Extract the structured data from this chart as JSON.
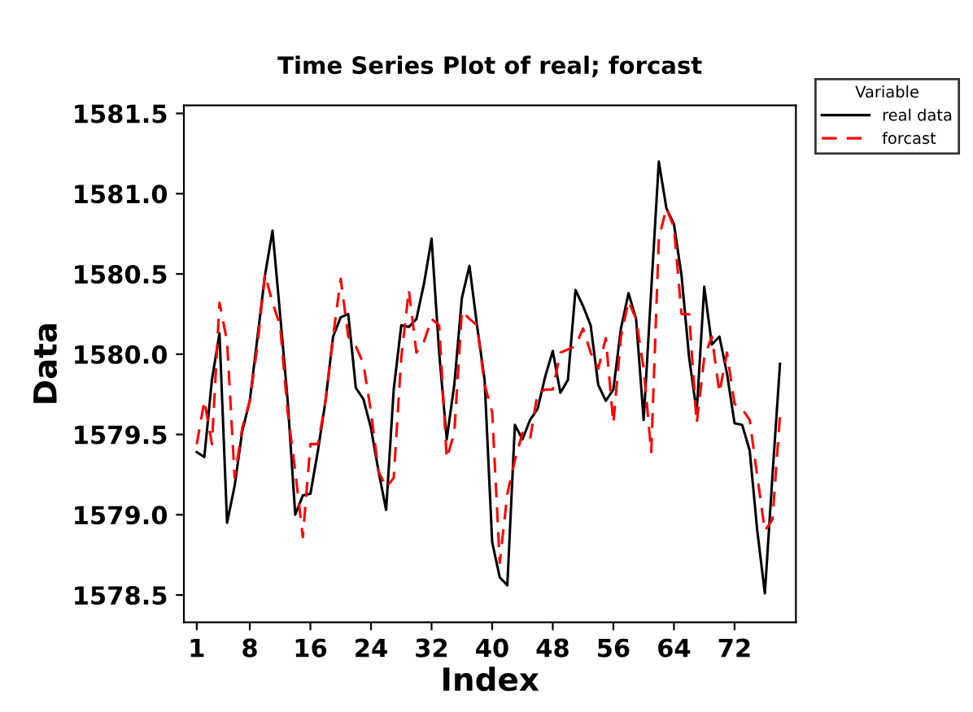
{
  "chart_data": {
    "type": "line",
    "title": "Time Series Plot of real; forcast",
    "xlabel": "Index",
    "ylabel": "Data",
    "legend_title": "Variable",
    "legend": "top right",
    "x": [
      1,
      2,
      3,
      4,
      5,
      6,
      7,
      8,
      9,
      10,
      11,
      12,
      13,
      14,
      15,
      16,
      17,
      18,
      19,
      20,
      21,
      22,
      23,
      24,
      25,
      26,
      27,
      28,
      29,
      30,
      31,
      32,
      33,
      34,
      35,
      36,
      37,
      38,
      39,
      40,
      41,
      42,
      43,
      44,
      45,
      46,
      47,
      48,
      49,
      50,
      51,
      52,
      53,
      54,
      55,
      56,
      57,
      58,
      59,
      60,
      61,
      62,
      63,
      64,
      65,
      66,
      67,
      68,
      69,
      70,
      71,
      72,
      73,
      74,
      75,
      76,
      77,
      78
    ],
    "xlim": [
      -0.7,
      80.1
    ],
    "xticks": [
      1,
      8,
      16,
      24,
      32,
      40,
      48,
      56,
      64,
      72
    ],
    "ylim": [
      1578.33,
      1581.55
    ],
    "yticks": [
      {
        "value": 1578.5,
        "label": "1578.5"
      },
      {
        "value": 1579,
        "label": "1579.0"
      },
      {
        "value": 1579.5,
        "label": "1579.5"
      },
      {
        "value": 1580,
        "label": "1580.0"
      },
      {
        "value": 1580.5,
        "label": "1580.5"
      },
      {
        "value": 1581,
        "label": "1581.0"
      },
      {
        "value": 1581.5,
        "label": "1581.5"
      }
    ],
    "grid": false,
    "marker": "none",
    "series": [
      {
        "name": "real data",
        "color": "#000000",
        "line_style": "solid",
        "values": [
          1579.39,
          1579.36,
          1579.84,
          1580.13,
          1578.95,
          1579.18,
          1579.52,
          1579.71,
          1580.1,
          1580.49,
          1580.77,
          1580.25,
          1579.71,
          1579.0,
          1579.12,
          1579.13,
          1579.4,
          1579.71,
          1580.11,
          1580.23,
          1580.25,
          1579.79,
          1579.72,
          1579.54,
          1579.27,
          1579.03,
          1579.78,
          1580.18,
          1580.17,
          1580.22,
          1580.44,
          1580.72,
          1580.01,
          1579.47,
          1579.81,
          1580.35,
          1580.55,
          1580.18,
          1579.84,
          1578.83,
          1578.61,
          1578.56,
          1579.56,
          1579.47,
          1579.59,
          1579.66,
          1579.86,
          1580.02,
          1579.76,
          1579.84,
          1580.4,
          1580.3,
          1580.18,
          1579.81,
          1579.71,
          1579.78,
          1580.16,
          1580.38,
          1580.22,
          1579.59,
          1580.4,
          1581.2,
          1580.91,
          1580.81,
          1580.49,
          1579.98,
          1579.64,
          1580.42,
          1580.06,
          1580.11,
          1579.88,
          1579.57,
          1579.56,
          1579.4,
          1578.9,
          1578.51,
          1579.24,
          1579.94
        ]
      },
      {
        "name": "forcast",
        "color": "#ff0000",
        "line_style": "dashed",
        "values": [
          1579.44,
          1579.71,
          1579.44,
          1580.32,
          1580.08,
          1579.23,
          1579.54,
          1579.71,
          1580.05,
          1580.5,
          1580.32,
          1580.18,
          1579.64,
          1579.27,
          1578.86,
          1579.44,
          1579.44,
          1579.71,
          1580.11,
          1580.47,
          1580.11,
          1580.05,
          1579.94,
          1579.64,
          1579.27,
          1579.17,
          1579.23,
          1579.98,
          1580.4,
          1580.01,
          1580.08,
          1580.22,
          1580.18,
          1579.35,
          1579.51,
          1580.27,
          1580.22,
          1580.18,
          1579.81,
          1579.64,
          1578.7,
          1579.13,
          1579.34,
          1579.51,
          1579.47,
          1579.76,
          1579.78,
          1579.78,
          1580.01,
          1580.03,
          1580.05,
          1580.16,
          1580.01,
          1579.91,
          1580.1,
          1579.57,
          1580.11,
          1580.33,
          1580.22,
          1579.91,
          1579.39,
          1580.72,
          1580.91,
          1580.79,
          1580.25,
          1580.25,
          1579.57,
          1579.98,
          1580.11,
          1579.76,
          1580.01,
          1579.69,
          1579.66,
          1579.59,
          1579.24,
          1578.9,
          1578.97,
          1579.62
        ]
      }
    ]
  }
}
